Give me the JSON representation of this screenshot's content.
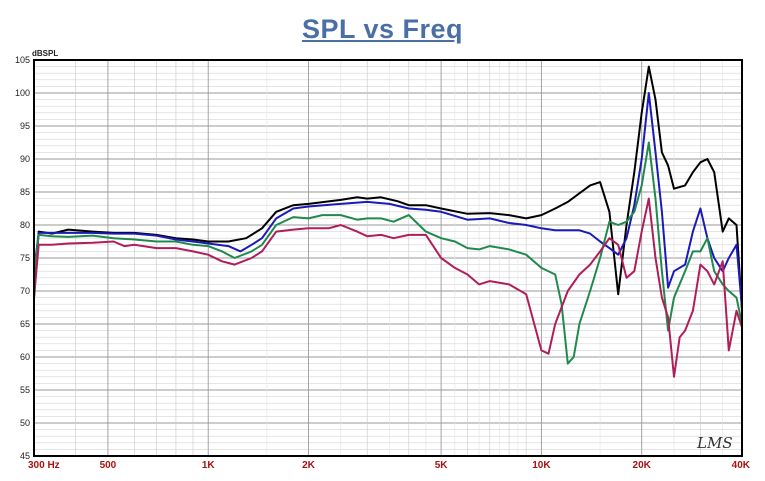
{
  "chart_data": {
    "type": "line",
    "title": "SPL vs Freq",
    "ylabel": "dBSPL",
    "xlabel": "",
    "x_scale": "log",
    "xlim": [
      300,
      40000
    ],
    "ylim": [
      45,
      105
    ],
    "yticks": [
      45,
      50,
      55,
      60,
      65,
      70,
      75,
      80,
      85,
      90,
      95,
      100,
      105
    ],
    "xtick_labels": [
      {
        "value": 300,
        "label": "300  Hz"
      },
      {
        "value": 500,
        "label": "500"
      },
      {
        "value": 1000,
        "label": "1K"
      },
      {
        "value": 2000,
        "label": "2K"
      },
      {
        "value": 5000,
        "label": "5K"
      },
      {
        "value": 10000,
        "label": "10K"
      },
      {
        "value": 20000,
        "label": "20K"
      },
      {
        "value": 40000,
        "label": "40K"
      }
    ],
    "grid": true,
    "watermark": "LMS",
    "colors": {
      "black": "#000000",
      "blue": "#1a1ab8",
      "green": "#1f8a4c",
      "magenta": "#b01e5a",
      "title": "#4a6fa5"
    },
    "series": [
      {
        "color": "#000000",
        "points": [
          [
            300,
            69
          ],
          [
            310,
            79
          ],
          [
            340,
            78.7
          ],
          [
            380,
            79.3
          ],
          [
            450,
            79
          ],
          [
            520,
            78.8
          ],
          [
            600,
            78.8
          ],
          [
            700,
            78.5
          ],
          [
            800,
            78
          ],
          [
            900,
            77.8
          ],
          [
            1000,
            77.5
          ],
          [
            1150,
            77.5
          ],
          [
            1300,
            78
          ],
          [
            1450,
            79.5
          ],
          [
            1600,
            82
          ],
          [
            1800,
            83
          ],
          [
            2000,
            83.2
          ],
          [
            2500,
            83.8
          ],
          [
            2800,
            84.2
          ],
          [
            3000,
            84
          ],
          [
            3300,
            84.2
          ],
          [
            3700,
            83.6
          ],
          [
            4000,
            83
          ],
          [
            4500,
            83
          ],
          [
            5000,
            82.5
          ],
          [
            6000,
            81.7
          ],
          [
            7000,
            81.8
          ],
          [
            8000,
            81.5
          ],
          [
            9000,
            81
          ],
          [
            10000,
            81.5
          ],
          [
            11000,
            82.5
          ],
          [
            12000,
            83.5
          ],
          [
            13000,
            84.8
          ],
          [
            14000,
            86
          ],
          [
            15000,
            86.5
          ],
          [
            16000,
            82
          ],
          [
            17000,
            69.5
          ],
          [
            18000,
            80
          ],
          [
            19000,
            88
          ],
          [
            20000,
            97
          ],
          [
            21000,
            104
          ],
          [
            22000,
            99
          ],
          [
            23000,
            91
          ],
          [
            24000,
            89
          ],
          [
            25000,
            85.5
          ],
          [
            27000,
            86
          ],
          [
            28500,
            88
          ],
          [
            30000,
            89.5
          ],
          [
            31500,
            90
          ],
          [
            33000,
            88
          ],
          [
            35000,
            79
          ],
          [
            36500,
            81
          ],
          [
            38500,
            80
          ],
          [
            40000,
            67
          ]
        ]
      },
      {
        "color": "#1a1ab8",
        "points": [
          [
            300,
            73
          ],
          [
            310,
            78.8
          ],
          [
            340,
            78.8
          ],
          [
            380,
            78.8
          ],
          [
            450,
            78.8
          ],
          [
            520,
            78.7
          ],
          [
            600,
            78.7
          ],
          [
            700,
            78.4
          ],
          [
            800,
            77.8
          ],
          [
            900,
            77.5
          ],
          [
            1000,
            77.2
          ],
          [
            1150,
            76.8
          ],
          [
            1250,
            76
          ],
          [
            1350,
            77
          ],
          [
            1450,
            78
          ],
          [
            1600,
            81
          ],
          [
            1800,
            82.5
          ],
          [
            2000,
            82.8
          ],
          [
            2500,
            83.2
          ],
          [
            3000,
            83.5
          ],
          [
            3500,
            83.2
          ],
          [
            4000,
            82.5
          ],
          [
            4500,
            82.3
          ],
          [
            5000,
            82
          ],
          [
            6000,
            80.8
          ],
          [
            7000,
            81
          ],
          [
            8000,
            80.3
          ],
          [
            9000,
            80
          ],
          [
            10000,
            79.5
          ],
          [
            11000,
            79.2
          ],
          [
            12000,
            79.2
          ],
          [
            13000,
            79.2
          ],
          [
            14000,
            78.7
          ],
          [
            15000,
            77.5
          ],
          [
            16000,
            76.5
          ],
          [
            17000,
            75.5
          ],
          [
            18000,
            78
          ],
          [
            19000,
            83
          ],
          [
            20000,
            90
          ],
          [
            21000,
            100
          ],
          [
            22000,
            91
          ],
          [
            23000,
            82
          ],
          [
            24000,
            70.5
          ],
          [
            25000,
            73
          ],
          [
            27000,
            74
          ],
          [
            28500,
            79
          ],
          [
            30000,
            82.5
          ],
          [
            31500,
            78
          ],
          [
            33000,
            75
          ],
          [
            35000,
            73
          ],
          [
            36500,
            75
          ],
          [
            38500,
            77
          ],
          [
            40000,
            67.5
          ]
        ]
      },
      {
        "color": "#1f8a4c",
        "points": [
          [
            300,
            72.5
          ],
          [
            310,
            78.5
          ],
          [
            340,
            78.3
          ],
          [
            380,
            78.2
          ],
          [
            450,
            78.4
          ],
          [
            520,
            78
          ],
          [
            600,
            77.8
          ],
          [
            700,
            77.5
          ],
          [
            800,
            77.5
          ],
          [
            900,
            77
          ],
          [
            1000,
            76.8
          ],
          [
            1100,
            76
          ],
          [
            1200,
            75
          ],
          [
            1350,
            76
          ],
          [
            1450,
            77
          ],
          [
            1600,
            80
          ],
          [
            1800,
            81.2
          ],
          [
            2000,
            81
          ],
          [
            2200,
            81.5
          ],
          [
            2500,
            81.5
          ],
          [
            2800,
            80.8
          ],
          [
            3000,
            81
          ],
          [
            3300,
            81
          ],
          [
            3600,
            80.5
          ],
          [
            4000,
            81.5
          ],
          [
            4500,
            79
          ],
          [
            5000,
            78
          ],
          [
            5500,
            77.5
          ],
          [
            6000,
            76.5
          ],
          [
            6500,
            76.3
          ],
          [
            7000,
            76.8
          ],
          [
            8000,
            76.3
          ],
          [
            9000,
            75.5
          ],
          [
            10000,
            73.5
          ],
          [
            11000,
            72.5
          ],
          [
            11500,
            68
          ],
          [
            12000,
            59
          ],
          [
            12500,
            60
          ],
          [
            13000,
            65
          ],
          [
            14000,
            70
          ],
          [
            15000,
            75
          ],
          [
            16000,
            80.5
          ],
          [
            17000,
            80
          ],
          [
            18000,
            80.5
          ],
          [
            19000,
            82
          ],
          [
            20000,
            86
          ],
          [
            21000,
            92.5
          ],
          [
            22000,
            84
          ],
          [
            23000,
            73
          ],
          [
            24000,
            64
          ],
          [
            25000,
            69
          ],
          [
            27000,
            73
          ],
          [
            28500,
            76
          ],
          [
            30000,
            76
          ],
          [
            31500,
            78
          ],
          [
            33000,
            73
          ],
          [
            35000,
            71
          ],
          [
            36500,
            70
          ],
          [
            38500,
            69
          ],
          [
            40000,
            65
          ]
        ]
      },
      {
        "color": "#b01e5a",
        "points": [
          [
            300,
            69
          ],
          [
            310,
            77
          ],
          [
            340,
            77
          ],
          [
            380,
            77.2
          ],
          [
            450,
            77.3
          ],
          [
            520,
            77.5
          ],
          [
            560,
            76.8
          ],
          [
            600,
            77
          ],
          [
            700,
            76.5
          ],
          [
            800,
            76.5
          ],
          [
            900,
            76
          ],
          [
            1000,
            75.5
          ],
          [
            1100,
            74.5
          ],
          [
            1200,
            74
          ],
          [
            1350,
            75
          ],
          [
            1450,
            76
          ],
          [
            1600,
            79
          ],
          [
            1800,
            79.3
          ],
          [
            2000,
            79.5
          ],
          [
            2300,
            79.5
          ],
          [
            2500,
            80
          ],
          [
            2800,
            79
          ],
          [
            3000,
            78.3
          ],
          [
            3300,
            78.5
          ],
          [
            3600,
            78
          ],
          [
            4000,
            78.5
          ],
          [
            4500,
            78.5
          ],
          [
            5000,
            75
          ],
          [
            5500,
            73.5
          ],
          [
            6000,
            72.5
          ],
          [
            6500,
            71
          ],
          [
            7000,
            71.5
          ],
          [
            8000,
            71
          ],
          [
            9000,
            69.5
          ],
          [
            10000,
            61
          ],
          [
            10500,
            60.5
          ],
          [
            11000,
            65
          ],
          [
            12000,
            70
          ],
          [
            13000,
            72.5
          ],
          [
            14000,
            74
          ],
          [
            15000,
            76
          ],
          [
            16000,
            78
          ],
          [
            17000,
            77
          ],
          [
            18000,
            72
          ],
          [
            19000,
            73
          ],
          [
            20000,
            79
          ],
          [
            21000,
            84
          ],
          [
            22000,
            75
          ],
          [
            23000,
            69
          ],
          [
            24000,
            66
          ],
          [
            25000,
            57
          ],
          [
            26000,
            63
          ],
          [
            27000,
            64
          ],
          [
            28500,
            67
          ],
          [
            30000,
            74
          ],
          [
            31500,
            73
          ],
          [
            33000,
            71
          ],
          [
            35000,
            74.5
          ],
          [
            36500,
            61
          ],
          [
            38500,
            67
          ],
          [
            40000,
            64.5
          ]
        ]
      }
    ]
  }
}
